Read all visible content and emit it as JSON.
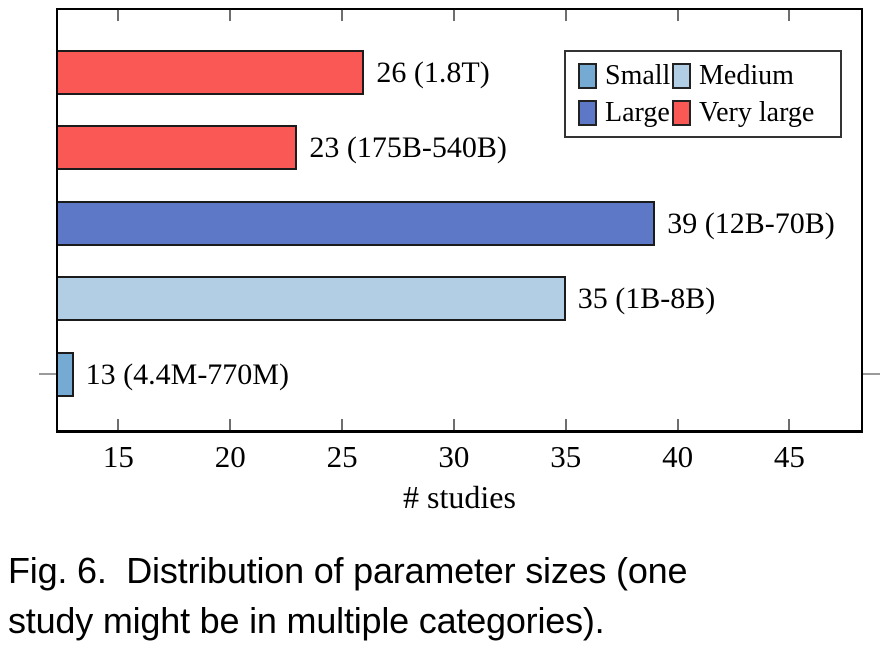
{
  "figure": {
    "caption_line1": "Fig. 6.  Distribution of parameter sizes (one",
    "caption_line2": "study might be in multiple categories)."
  },
  "chart_data": {
    "type": "bar",
    "orientation": "horizontal",
    "title": "",
    "xlabel": "# studies",
    "ylabel": "",
    "xlim": [
      12.3,
      48.2
    ],
    "xticks": [
      15,
      20,
      25,
      30,
      35,
      40,
      45
    ],
    "grid": false,
    "bars": [
      {
        "value": 26,
        "label": "26 (1.8T)",
        "category": "Very large",
        "color": "#F95854"
      },
      {
        "value": 23,
        "label": "23 (175B-540B)",
        "category": "Very large",
        "color": "#F95854"
      },
      {
        "value": 39,
        "label": "39 (12B-70B)",
        "category": "Large",
        "color": "#5C78C6"
      },
      {
        "value": 35,
        "label": "35 (1B-8B)",
        "category": "Medium",
        "color": "#B2CEE5"
      },
      {
        "value": 13,
        "label": "13 (4.4M-770M)",
        "category": "Small",
        "color": "#75ABD3"
      }
    ],
    "legend": {
      "position": "top-right",
      "items": [
        {
          "label": "Small",
          "color": "#75ABD3"
        },
        {
          "label": "Medium",
          "color": "#B2CEE5"
        },
        {
          "label": "Large",
          "color": "#5C78C6"
        },
        {
          "label": "Very large",
          "color": "#F95854"
        }
      ]
    },
    "colors": {
      "bar_border": "#1b1b1b",
      "axis": "#000000",
      "inner_tick": "#6e6e6e",
      "outer_tick": "#9a9a9a"
    }
  }
}
